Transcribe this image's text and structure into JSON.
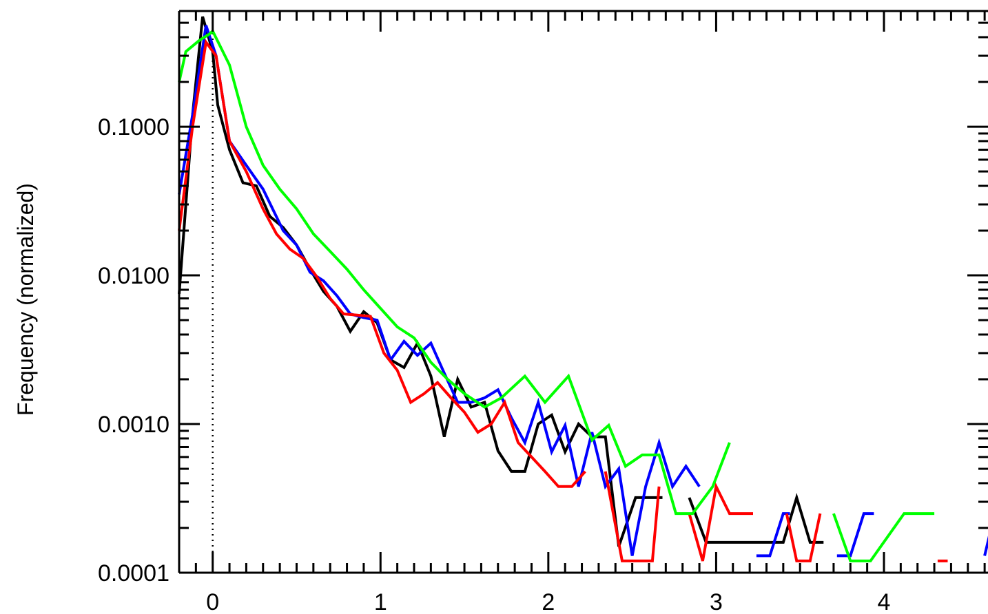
{
  "chart_data": {
    "type": "line",
    "title": "",
    "xlabel": "",
    "ylabel": "Frequency (normalized)",
    "xlim": [
      -0.2,
      4.62
    ],
    "ylim": [
      0.0001,
      0.6
    ],
    "yscale": "log",
    "grid": false,
    "legend": "none",
    "x_ticks": [
      {
        "value": 0,
        "label": "0"
      },
      {
        "value": 1,
        "label": "1"
      },
      {
        "value": 2,
        "label": "2"
      },
      {
        "value": 3,
        "label": "3"
      },
      {
        "value": 4,
        "label": "4"
      }
    ],
    "y_ticks": [
      {
        "value": 0.1,
        "label": "0.1000"
      },
      {
        "value": 0.01,
        "label": "0.0100"
      },
      {
        "value": 0.001,
        "label": "0.0010"
      },
      {
        "value": 0.0001,
        "label": "0.0001"
      }
    ],
    "reference_line": {
      "x": 0,
      "style": "dotted"
    },
    "series": [
      {
        "color": "#000000",
        "segments": [
          [
            [
              -0.2,
              0.0075
            ],
            [
              -0.12,
              0.12
            ],
            [
              -0.06,
              0.55
            ],
            [
              0.0,
              0.32
            ],
            [
              0.03,
              0.14
            ],
            [
              0.1,
              0.07
            ],
            [
              0.18,
              0.042
            ],
            [
              0.26,
              0.04
            ],
            [
              0.34,
              0.025
            ],
            [
              0.42,
              0.021
            ],
            [
              0.5,
              0.016
            ],
            [
              0.58,
              0.011
            ],
            [
              0.66,
              0.0078
            ],
            [
              0.74,
              0.0062
            ],
            [
              0.82,
              0.0042
            ],
            [
              0.9,
              0.0057
            ],
            [
              0.98,
              0.0048
            ],
            [
              1.06,
              0.0027
            ],
            [
              1.14,
              0.0024
            ],
            [
              1.22,
              0.0035
            ],
            [
              1.3,
              0.0021
            ],
            [
              1.38,
              0.00082
            ],
            [
              1.46,
              0.002
            ],
            [
              1.54,
              0.0013
            ],
            [
              1.62,
              0.0014
            ],
            [
              1.7,
              0.00066
            ],
            [
              1.78,
              0.00048
            ],
            [
              1.86,
              0.00048
            ],
            [
              1.94,
              0.001
            ],
            [
              2.02,
              0.00115
            ],
            [
              2.1,
              0.00065
            ],
            [
              2.18,
              0.001
            ],
            [
              2.26,
              0.00082
            ],
            [
              2.34,
              0.00082
            ],
            [
              2.42,
              0.00015
            ],
            [
              2.52,
              0.00032
            ],
            [
              2.68,
              0.00032
            ]
          ],
          [
            [
              2.84,
              0.00032
            ],
            [
              2.94,
              0.00016
            ],
            [
              3.4,
              0.00016
            ],
            [
              3.48,
              0.00032
            ],
            [
              3.56,
              0.00016
            ],
            [
              3.64,
              0.00016
            ]
          ]
        ]
      },
      {
        "color": "#0000ff",
        "segments": [
          [
            [
              -0.2,
              0.035
            ],
            [
              -0.12,
              0.12
            ],
            [
              -0.04,
              0.48
            ],
            [
              0.02,
              0.3
            ],
            [
              0.1,
              0.08
            ],
            [
              0.2,
              0.055
            ],
            [
              0.3,
              0.038
            ],
            [
              0.42,
              0.02
            ],
            [
              0.5,
              0.016
            ],
            [
              0.58,
              0.0105
            ],
            [
              0.66,
              0.0092
            ],
            [
              0.74,
              0.0073
            ],
            [
              0.82,
              0.0055
            ],
            [
              0.9,
              0.0052
            ],
            [
              0.98,
              0.005
            ],
            [
              1.06,
              0.0027
            ],
            [
              1.14,
              0.0036
            ],
            [
              1.22,
              0.0029
            ],
            [
              1.3,
              0.0035
            ],
            [
              1.38,
              0.0022
            ],
            [
              1.46,
              0.0014
            ],
            [
              1.54,
              0.0014
            ],
            [
              1.62,
              0.0015
            ],
            [
              1.7,
              0.0017
            ],
            [
              1.78,
              0.0011
            ],
            [
              1.86,
              0.00075
            ],
            [
              1.94,
              0.0014
            ],
            [
              2.02,
              0.00065
            ],
            [
              2.1,
              0.00098
            ],
            [
              2.18,
              0.00038
            ],
            [
              2.26,
              0.00088
            ],
            [
              2.34,
              0.00038
            ],
            [
              2.42,
              0.0005
            ],
            [
              2.5,
              0.00013
            ],
            [
              2.58,
              0.00038
            ],
            [
              2.66,
              0.00075
            ],
            [
              2.74,
              0.00038
            ],
            [
              2.82,
              0.00052
            ],
            [
              2.9,
              0.00038
            ]
          ],
          [
            [
              3.24,
              0.00013
            ],
            [
              3.32,
              0.00013
            ],
            [
              3.4,
              0.00025
            ],
            [
              3.44,
              0.00025
            ]
          ],
          [
            [
              3.72,
              0.00013
            ],
            [
              3.8,
              0.00013
            ],
            [
              3.88,
              0.00025
            ],
            [
              3.94,
              0.00025
            ]
          ],
          [
            [
              4.6,
              0.00013
            ],
            [
              4.66,
              0.00025
            ]
          ]
        ]
      },
      {
        "color": "#ff0000",
        "segments": [
          [
            [
              -0.2,
              0.02
            ],
            [
              -0.12,
              0.1
            ],
            [
              -0.04,
              0.37
            ],
            [
              0.02,
              0.3
            ],
            [
              0.1,
              0.08
            ],
            [
              0.2,
              0.05
            ],
            [
              0.3,
              0.028
            ],
            [
              0.38,
              0.019
            ],
            [
              0.46,
              0.015
            ],
            [
              0.54,
              0.013
            ],
            [
              0.62,
              0.0098
            ],
            [
              0.7,
              0.007
            ],
            [
              0.78,
              0.0055
            ],
            [
              0.86,
              0.0054
            ],
            [
              0.94,
              0.0053
            ],
            [
              1.02,
              0.003
            ],
            [
              1.1,
              0.0023
            ],
            [
              1.18,
              0.0014
            ],
            [
              1.26,
              0.0016
            ],
            [
              1.34,
              0.0019
            ],
            [
              1.42,
              0.0015
            ],
            [
              1.5,
              0.0012
            ],
            [
              1.58,
              0.00088
            ],
            [
              1.66,
              0.001
            ],
            [
              1.74,
              0.0014
            ],
            [
              1.82,
              0.00075
            ],
            [
              1.9,
              0.0006
            ],
            [
              1.98,
              0.00048
            ],
            [
              2.06,
              0.00038
            ],
            [
              2.14,
              0.00038
            ],
            [
              2.22,
              0.00048
            ]
          ],
          [
            [
              2.34,
              0.00048
            ],
            [
              2.44,
              0.00012
            ],
            [
              2.56,
              0.00012
            ],
            [
              2.62,
              0.00012
            ],
            [
              2.66,
              0.00038
            ]
          ],
          [
            [
              2.84,
              0.00025
            ],
            [
              2.92,
              0.00012
            ],
            [
              3.0,
              0.00038
            ],
            [
              3.08,
              0.00025
            ],
            [
              3.22,
              0.00025
            ]
          ],
          [
            [
              3.42,
              0.00025
            ],
            [
              3.48,
              0.00012
            ],
            [
              3.56,
              0.00012
            ],
            [
              3.62,
              0.00025
            ]
          ],
          [
            [
              4.32,
              0.00012
            ],
            [
              4.38,
              0.00012
            ]
          ]
        ]
      },
      {
        "color": "#00ff00",
        "segments": [
          [
            [
              -0.2,
              0.2
            ],
            [
              -0.16,
              0.32
            ],
            [
              -0.08,
              0.38
            ],
            [
              -0.02,
              0.42
            ],
            [
              0.0,
              0.44
            ],
            [
              0.1,
              0.26
            ],
            [
              0.2,
              0.1
            ],
            [
              0.3,
              0.055
            ],
            [
              0.4,
              0.038
            ],
            [
              0.5,
              0.028
            ],
            [
              0.6,
              0.019
            ],
            [
              0.7,
              0.0145
            ],
            [
              0.8,
              0.011
            ],
            [
              0.9,
              0.008
            ],
            [
              1.0,
              0.006
            ],
            [
              1.1,
              0.0045
            ],
            [
              1.2,
              0.0038
            ],
            [
              1.3,
              0.0026
            ],
            [
              1.4,
              0.002
            ],
            [
              1.5,
              0.0016
            ],
            [
              1.62,
              0.0013
            ],
            [
              1.72,
              0.0015
            ],
            [
              1.86,
              0.0021
            ],
            [
              1.98,
              0.0014
            ],
            [
              2.12,
              0.0021
            ],
            [
              2.26,
              0.00078
            ],
            [
              2.36,
              0.00098
            ],
            [
              2.46,
              0.00052
            ],
            [
              2.56,
              0.00062
            ],
            [
              2.66,
              0.00062
            ],
            [
              2.76,
              0.00025
            ],
            [
              2.86,
              0.00025
            ],
            [
              2.98,
              0.00038
            ],
            [
              3.08,
              0.00075
            ]
          ],
          [
            [
              3.7,
              0.00025
            ],
            [
              3.8,
              0.00012
            ],
            [
              3.92,
              0.00012
            ],
            [
              4.12,
              0.00025
            ],
            [
              4.3,
              0.00025
            ]
          ]
        ]
      }
    ]
  }
}
